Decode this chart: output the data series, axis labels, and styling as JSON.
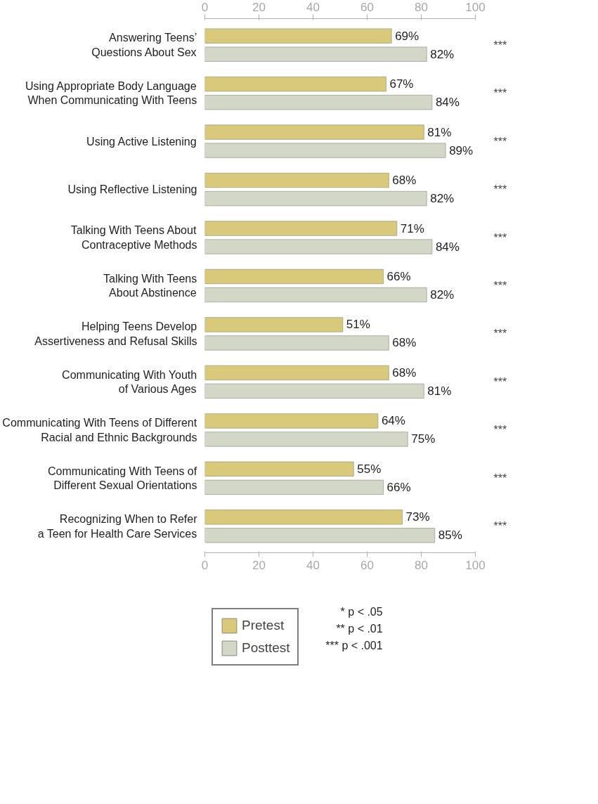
{
  "chart_data": {
    "type": "bar",
    "orientation": "horizontal",
    "categories": [
      "Answering Teens’\nQuestions About Sex",
      "Using Appropriate Body Language\nWhen Communicating With Teens",
      "Using Active Listening",
      "Using Reflective Listening",
      "Talking With Teens About\nContraceptive Methods",
      "Talking With Teens\nAbout Abstinence",
      "Helping Teens Develop\nAssertiveness and Refusal Skills",
      "Communicating With Youth\nof Various Ages",
      "Communicating With Teens of Different\nRacial and Ethnic Backgrounds",
      "Communicating With Teens of\nDifferent Sexual Orientations",
      "Recognizing When to Refer\na Teen for Health Care Services"
    ],
    "series": [
      {
        "name": "Pretest",
        "color": "#d9c97a",
        "values": [
          69,
          67,
          81,
          68,
          71,
          66,
          51,
          68,
          64,
          55,
          73
        ],
        "value_labels": [
          "69%",
          "67%",
          "81%",
          "68%",
          "71%",
          "66%",
          "51%",
          "68%",
          "64%",
          "55%",
          "73%"
        ]
      },
      {
        "name": "Posttest",
        "color": "#d3d7c8",
        "values": [
          82,
          84,
          89,
          82,
          84,
          82,
          68,
          81,
          75,
          66,
          85
        ],
        "value_labels": [
          "82%",
          "84%",
          "89%",
          "82%",
          "84%",
          "82%",
          "68%",
          "81%",
          "75%",
          "66%",
          "85%"
        ]
      }
    ],
    "xlim": [
      0,
      100
    ],
    "xticks": [
      0,
      20,
      40,
      60,
      80,
      100
    ],
    "x2lim": [
      0,
      100
    ],
    "x2ticks": [
      0,
      20,
      40,
      60,
      80,
      100
    ],
    "grid": false,
    "legend": "bottom left",
    "annotations": [
      "***",
      "***",
      "***",
      "***",
      "***",
      "***",
      "***",
      "***",
      "***",
      "***",
      "***",
      "* p < .05",
      "** p < .01",
      "*** p < .001"
    ]
  }
}
